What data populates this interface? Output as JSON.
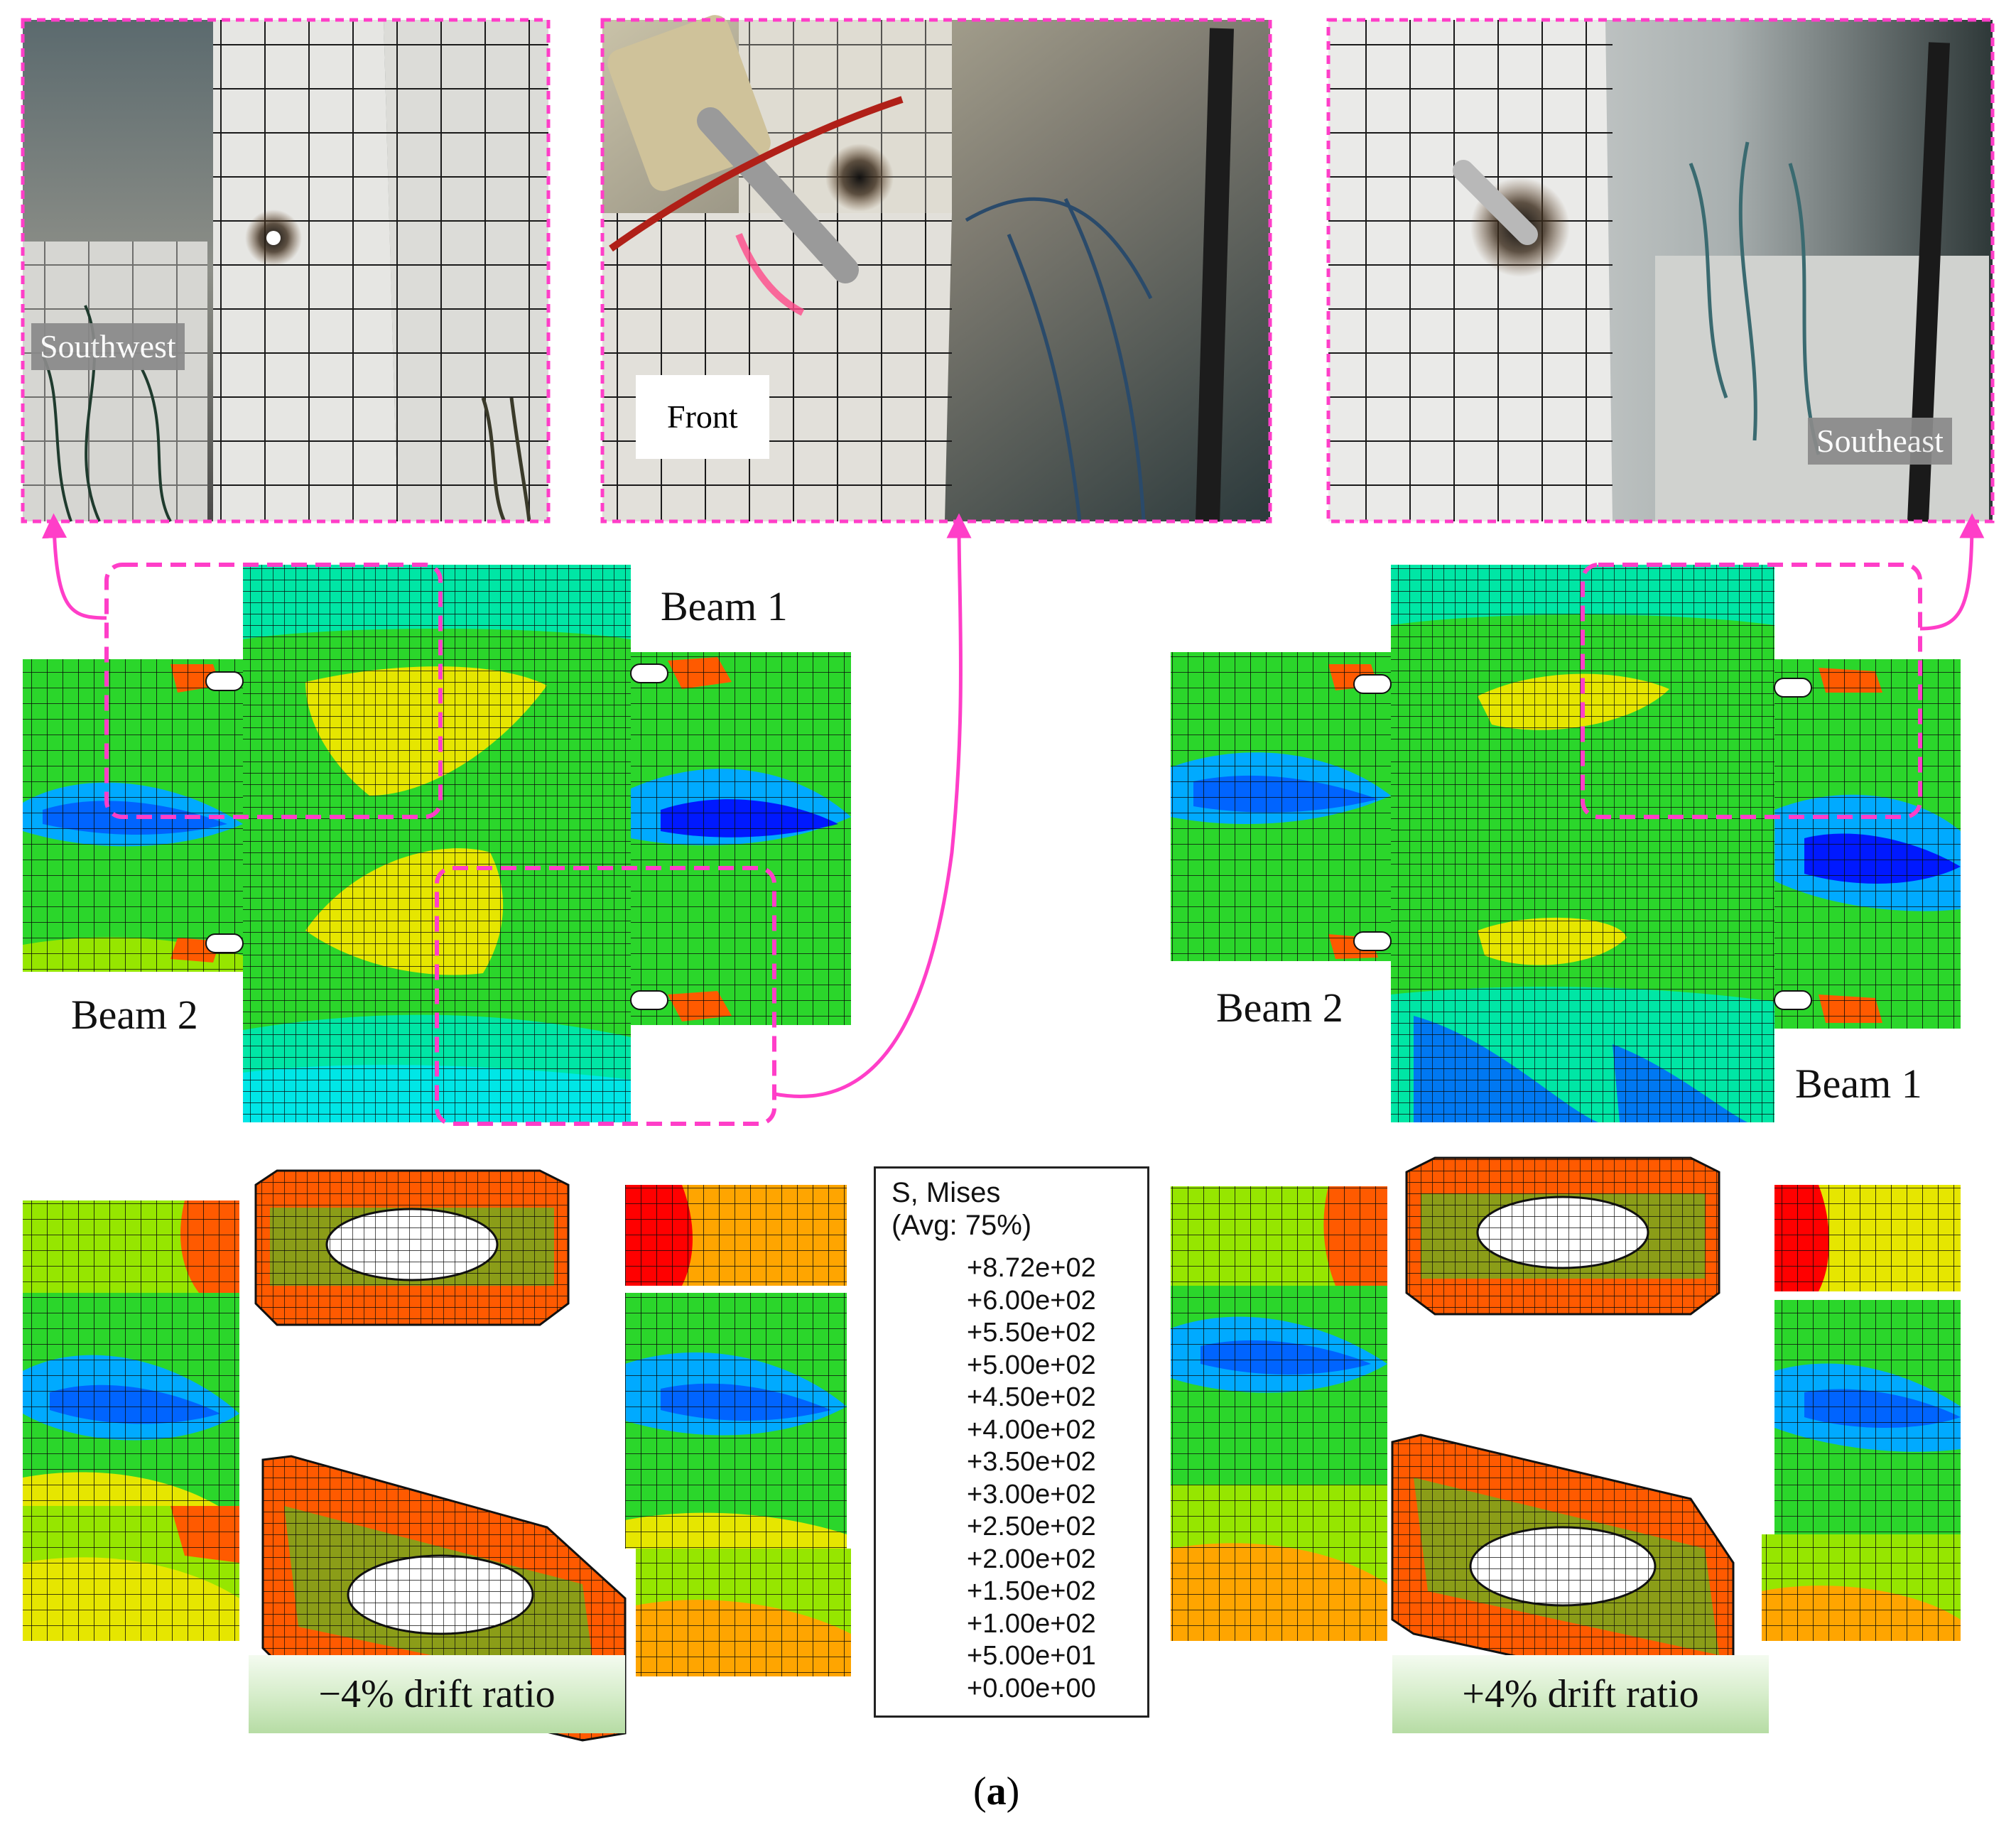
{
  "photos": [
    {
      "label": "Southwest"
    },
    {
      "label": "Front"
    },
    {
      "label": "Southeast"
    }
  ],
  "models": {
    "left": {
      "beam_top": "Beam 1",
      "beam_bottom": "Beam 2",
      "drift": "−4% drift ratio"
    },
    "right": {
      "beam_left": "Beam 2",
      "beam_right": "Beam 1",
      "drift": "+4% drift ratio"
    }
  },
  "legend": {
    "title_line1": "S, Mises",
    "title_line2": "(Avg: 75%)",
    "entries": [
      {
        "label": "+8.72e+02",
        "color": "#c8c8c8"
      },
      {
        "label": "+6.00e+02",
        "color": "#ff0000"
      },
      {
        "label": "+5.50e+02",
        "color": "#ff5a00"
      },
      {
        "label": "+5.00e+02",
        "color": "#ffa500"
      },
      {
        "label": "+4.50e+02",
        "color": "#e6e600"
      },
      {
        "label": "+4.00e+02",
        "color": "#96e600"
      },
      {
        "label": "+3.50e+02",
        "color": "#2bd62b"
      },
      {
        "label": "+3.00e+02",
        "color": "#00e65a"
      },
      {
        "label": "+2.50e+02",
        "color": "#00e6a5"
      },
      {
        "label": "+2.00e+02",
        "color": "#00e6e6"
      },
      {
        "label": "+1.50e+02",
        "color": "#00aaff"
      },
      {
        "label": "+1.00e+02",
        "color": "#0064ff"
      },
      {
        "label": "+5.00e+01",
        "color": "#0000ff"
      },
      {
        "label": "+0.00e+00",
        "color": null
      }
    ]
  },
  "caption": {
    "open": "(",
    "letter": "a",
    "close": ")"
  },
  "colors": {
    "highlight": "#ff3ec8",
    "mesh": "#0a0a0a"
  }
}
